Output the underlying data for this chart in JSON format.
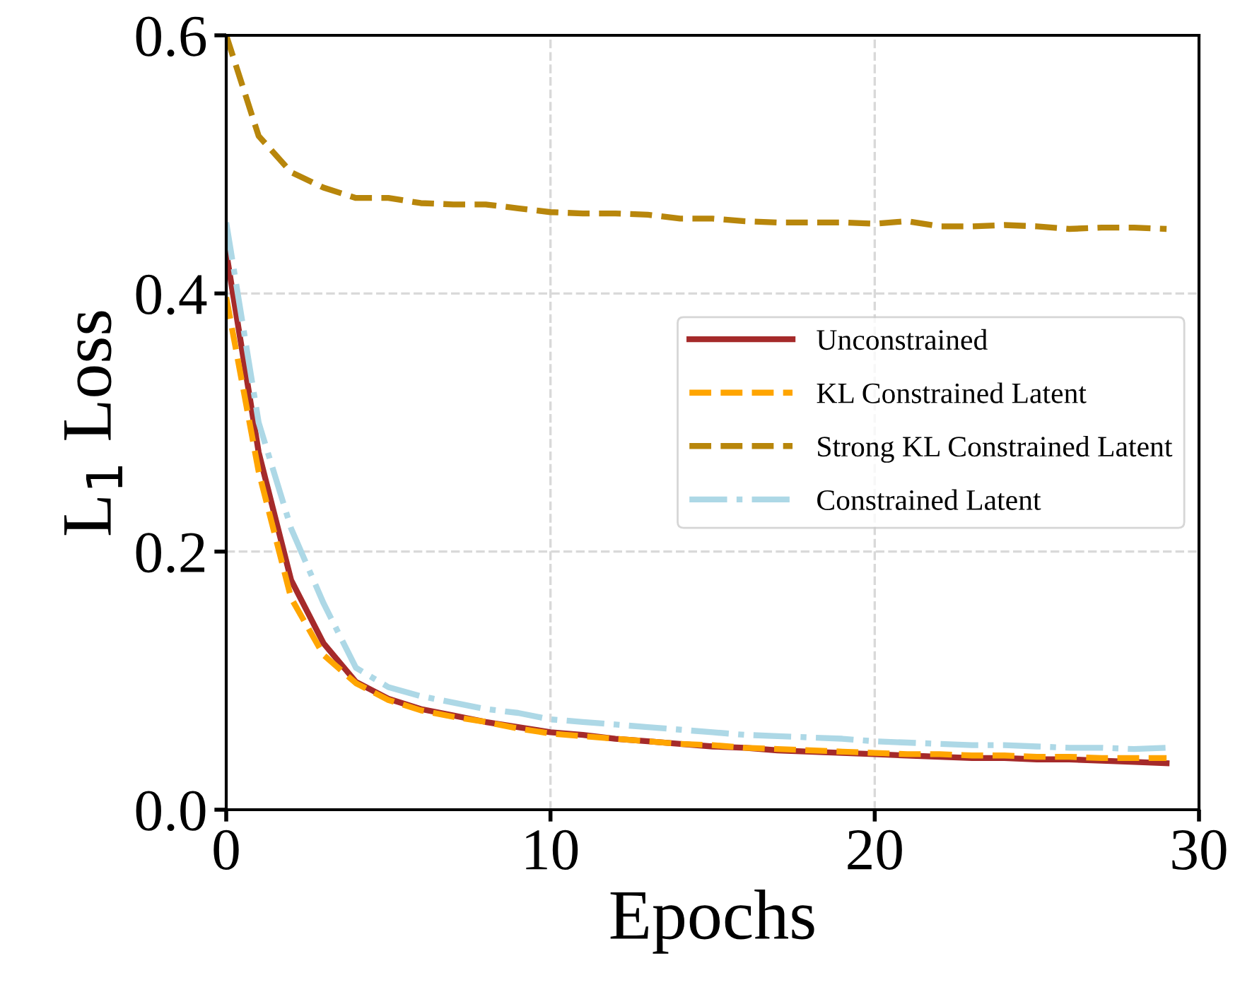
{
  "chart_data": {
    "type": "line",
    "xlabel": "Epochs",
    "ylabel": "L$_{1}$ Loss",
    "x": [
      0,
      1,
      2,
      3,
      4,
      5,
      6,
      7,
      8,
      9,
      10,
      11,
      12,
      13,
      14,
      15,
      16,
      17,
      18,
      19,
      20,
      21,
      22,
      23,
      24,
      25,
      26,
      27,
      28,
      29
    ],
    "series": [
      {
        "name": "Unconstrained",
        "color": "#a52a2a",
        "line_style": "solid",
        "values": [
          0.432,
          0.277,
          0.178,
          0.129,
          0.099,
          0.086,
          0.078,
          0.073,
          0.068,
          0.064,
          0.06,
          0.058,
          0.055,
          0.053,
          0.051,
          0.049,
          0.048,
          0.046,
          0.045,
          0.044,
          0.043,
          0.042,
          0.041,
          0.04,
          0.04,
          0.039,
          0.039,
          0.038,
          0.037,
          0.036
        ]
      },
      {
        "name": "KL Constrained Latent",
        "color": "#ffa500",
        "line_style": "dashed",
        "values": [
          0.397,
          0.262,
          0.164,
          0.12,
          0.098,
          0.085,
          0.077,
          0.072,
          0.068,
          0.063,
          0.059,
          0.057,
          0.055,
          0.053,
          0.051,
          0.05,
          0.048,
          0.047,
          0.046,
          0.045,
          0.044,
          0.043,
          0.043,
          0.042,
          0.042,
          0.041,
          0.041,
          0.04,
          0.04,
          0.04
        ]
      },
      {
        "name": "Strong KL Constrained Latent",
        "color": "#b8860b",
        "line_style": "dashed",
        "values": [
          0.6,
          0.522,
          0.494,
          0.482,
          0.474,
          0.474,
          0.47,
          0.469,
          0.469,
          0.466,
          0.463,
          0.462,
          0.462,
          0.461,
          0.458,
          0.458,
          0.456,
          0.455,
          0.455,
          0.455,
          0.454,
          0.456,
          0.452,
          0.452,
          0.453,
          0.452,
          0.45,
          0.451,
          0.451,
          0.45
        ]
      },
      {
        "name": "Constrained Latent",
        "color": "#add8e6",
        "line_style": "dashdot",
        "values": [
          0.455,
          0.3,
          0.218,
          0.16,
          0.11,
          0.095,
          0.088,
          0.083,
          0.078,
          0.075,
          0.07,
          0.068,
          0.066,
          0.064,
          0.062,
          0.06,
          0.058,
          0.057,
          0.056,
          0.055,
          0.053,
          0.052,
          0.051,
          0.05,
          0.05,
          0.049,
          0.048,
          0.048,
          0.047,
          0.048
        ]
      }
    ],
    "xlim": [
      0,
      30
    ],
    "ylim": [
      0.0,
      0.6
    ],
    "xticks": [
      0,
      10,
      20,
      30
    ],
    "yticks": [
      {
        "value": 0.0,
        "label": "0.0"
      },
      {
        "value": 0.2,
        "label": "0.2"
      },
      {
        "value": 0.4,
        "label": "0.4"
      },
      {
        "value": 0.6,
        "label": "0.6"
      }
    ],
    "grid": true,
    "legend": "center right"
  }
}
